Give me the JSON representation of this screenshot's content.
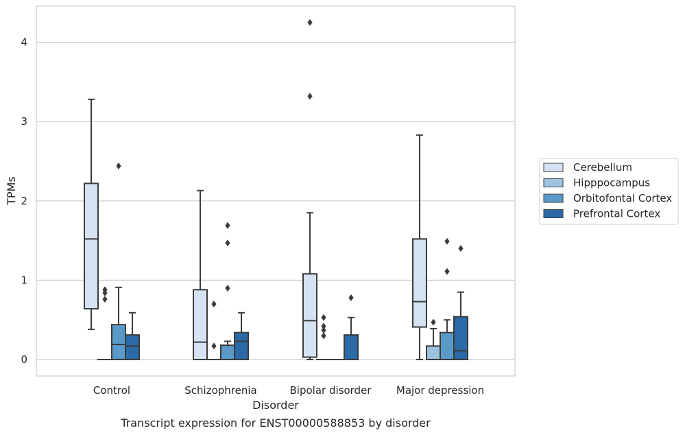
{
  "caption": "Transcript expression for ENST00000588853 by disorder",
  "chart_data": {
    "type": "boxplot",
    "xlabel": "Disorder",
    "ylabel": "TPMs",
    "ylim": [
      -0.2,
      4.5
    ],
    "yticks": [
      0,
      1,
      2,
      3,
      4
    ],
    "grid": "horizontal",
    "legend_position": "right",
    "categories": [
      "Control",
      "Schizophrenia",
      "Bipolar disorder",
      "Major depression"
    ],
    "series": [
      {
        "name": "Cerebellum",
        "color": "#d4e2f1",
        "boxes": [
          {
            "whislo": 0.38,
            "q1": 0.64,
            "med": 1.52,
            "q3": 2.22,
            "whishi": 3.28,
            "fliers": []
          },
          {
            "whislo": 0.0,
            "q1": 0.0,
            "med": 0.22,
            "q3": 0.88,
            "whishi": 2.13,
            "fliers": []
          },
          {
            "whislo": 0.0,
            "q1": 0.03,
            "med": 0.49,
            "q3": 1.08,
            "whishi": 1.85,
            "fliers": [
              3.32,
              4.25
            ]
          },
          {
            "whislo": 0.0,
            "q1": 0.41,
            "med": 0.73,
            "q3": 1.52,
            "whishi": 2.83,
            "fliers": []
          }
        ]
      },
      {
        "name": "Hipppocampus",
        "color": "#9dc3de",
        "boxes": [
          {
            "whislo": 0.0,
            "q1": 0.0,
            "med": 0.0,
            "q3": 0.0,
            "whishi": 0.0,
            "fliers": [
              0.76,
              0.84,
              0.88
            ]
          },
          {
            "whislo": 0.0,
            "q1": 0.0,
            "med": 0.0,
            "q3": 0.0,
            "whishi": 0.0,
            "fliers": [
              0.17,
              0.7
            ]
          },
          {
            "whislo": 0.0,
            "q1": 0.0,
            "med": 0.0,
            "q3": 0.0,
            "whishi": 0.0,
            "fliers": [
              0.3,
              0.37,
              0.42,
              0.53
            ]
          },
          {
            "whislo": 0.0,
            "q1": 0.0,
            "med": 0.0,
            "q3": 0.17,
            "whishi": 0.39,
            "fliers": [
              0.47
            ]
          }
        ]
      },
      {
        "name": "Orbitofontal Cortex",
        "color": "#5a9ac8",
        "boxes": [
          {
            "whislo": 0.0,
            "q1": 0.0,
            "med": 0.19,
            "q3": 0.44,
            "whishi": 0.91,
            "fliers": [
              2.44
            ]
          },
          {
            "whislo": 0.0,
            "q1": 0.0,
            "med": 0.0,
            "q3": 0.18,
            "whishi": 0.23,
            "fliers": [
              0.9,
              1.47,
              1.69
            ]
          },
          {
            "whislo": 0.0,
            "q1": 0.0,
            "med": 0.0,
            "q3": 0.0,
            "whishi": 0.0,
            "fliers": []
          },
          {
            "whislo": 0.0,
            "q1": 0.0,
            "med": 0.0,
            "q3": 0.34,
            "whishi": 0.5,
            "fliers": [
              1.11,
              1.49
            ]
          }
        ]
      },
      {
        "name": "Prefrontal Cortex",
        "color": "#2b6aa6",
        "boxes": [
          {
            "whislo": 0.0,
            "q1": 0.0,
            "med": 0.17,
            "q3": 0.31,
            "whishi": 0.59,
            "fliers": []
          },
          {
            "whislo": 0.0,
            "q1": 0.0,
            "med": 0.23,
            "q3": 0.34,
            "whishi": 0.59,
            "fliers": []
          },
          {
            "whislo": 0.0,
            "q1": 0.0,
            "med": 0.0,
            "q3": 0.31,
            "whishi": 0.53,
            "fliers": [
              0.78
            ]
          },
          {
            "whislo": 0.0,
            "q1": 0.0,
            "med": 0.11,
            "q3": 0.54,
            "whishi": 0.85,
            "fliers": [
              1.4
            ]
          }
        ]
      }
    ]
  }
}
